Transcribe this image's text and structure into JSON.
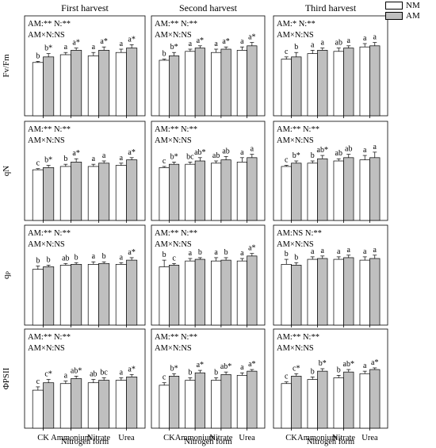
{
  "legend": {
    "items": [
      {
        "label": "NM",
        "color": "#ffffff"
      },
      {
        "label": "AM",
        "color": "#bfbfbf"
      }
    ]
  },
  "colors": {
    "NM": "#ffffff",
    "AM": "#bfbfbf",
    "axis": "#000000"
  },
  "column_titles": [
    "First harvest",
    "Second harvest",
    "Third harvest"
  ],
  "x_axis_label": "Nitrogen form",
  "chart_data": {
    "type": "bar",
    "grouped": true,
    "categories": [
      "CK",
      "Ammonium",
      "Nitrate",
      "Urea"
    ],
    "series_names": [
      "NM",
      "AM"
    ],
    "columns": [
      "First harvest",
      "Second harvest",
      "Third harvest"
    ],
    "xlabel": "Nitrogen form",
    "grid": false,
    "legend_position": "top-right",
    "rows": [
      {
        "ylabel": "Fv/Fm",
        "ylim": [
          0.0,
          0.9
        ],
        "panels": [
          {
            "stats": [
              "AM:** N:**",
              "AM×N:NS"
            ],
            "NM": [
              0.48,
              0.55,
              0.54,
              0.57
            ],
            "NM_err": [
              0.01,
              0.02,
              0.03,
              0.03
            ],
            "AM": [
              0.53,
              0.59,
              0.59,
              0.61
            ],
            "AM_err": [
              0.03,
              0.02,
              0.03,
              0.03
            ],
            "NM_labels": [
              "b",
              "a",
              "a",
              "a"
            ],
            "AM_labels": [
              "b*",
              "a*",
              "a*",
              "a*"
            ]
          },
          {
            "stats": [
              "AM:** N:**",
              "AM×N:NS"
            ],
            "NM": [
              0.5,
              0.58,
              0.57,
              0.59
            ],
            "NM_err": [
              0.01,
              0.02,
              0.03,
              0.03
            ],
            "AM": [
              0.54,
              0.61,
              0.6,
              0.63
            ],
            "AM_err": [
              0.03,
              0.02,
              0.02,
              0.03
            ],
            "NM_labels": [
              "b",
              "a",
              "a",
              "a"
            ],
            "AM_labels": [
              "b*",
              "a*",
              "a*",
              "a*"
            ]
          },
          {
            "stats": [
              "AM:* N:**",
              "AM×N:NS"
            ],
            "NM": [
              0.51,
              0.56,
              0.58,
              0.62
            ],
            "NM_err": [
              0.02,
              0.03,
              0.03,
              0.03
            ],
            "AM": [
              0.53,
              0.59,
              0.61,
              0.63
            ],
            "AM_err": [
              0.04,
              0.02,
              0.02,
              0.03
            ],
            "NM_labels": [
              "c",
              "a",
              "ab",
              "a"
            ],
            "AM_labels": [
              "b",
              "a",
              "a",
              "a"
            ]
          }
        ]
      },
      {
        "ylabel": "qN",
        "ylim": [
          0.0,
          0.9
        ],
        "panels": [
          {
            "stats": [
              "AM:** N:**",
              "AM×N:NS"
            ],
            "NM": [
              0.46,
              0.49,
              0.49,
              0.5
            ],
            "NM_err": [
              0.01,
              0.02,
              0.02,
              0.02
            ],
            "AM": [
              0.48,
              0.53,
              0.52,
              0.55
            ],
            "AM_err": [
              0.02,
              0.03,
              0.02,
              0.02
            ],
            "NM_labels": [
              "c",
              "b",
              "a",
              "a"
            ],
            "AM_labels": [
              "b*",
              "a*",
              "a",
              "a*"
            ]
          },
          {
            "stats": [
              "AM:** N:**",
              "AM×N:NS"
            ],
            "NM": [
              0.48,
              0.51,
              0.52,
              0.53
            ],
            "NM_err": [
              0.01,
              0.02,
              0.02,
              0.04
            ],
            "AM": [
              0.51,
              0.54,
              0.55,
              0.57
            ],
            "AM_err": [
              0.02,
              0.03,
              0.03,
              0.03
            ],
            "NM_labels": [
              "c",
              "bc",
              "ab",
              "a"
            ],
            "AM_labels": [
              "b*",
              "ab*",
              "ab",
              "a"
            ]
          },
          {
            "stats": [
              "AM:** N:**",
              "AM×N:NS"
            ],
            "NM": [
              0.49,
              0.52,
              0.54,
              0.55
            ],
            "NM_err": [
              0.01,
              0.02,
              0.02,
              0.04
            ],
            "AM": [
              0.52,
              0.56,
              0.57,
              0.57
            ],
            "AM_err": [
              0.02,
              0.03,
              0.03,
              0.05
            ],
            "NM_labels": [
              "c",
              "b",
              "ab",
              "a"
            ],
            "AM_labels": [
              "b*",
              "ab*",
              "ab",
              "a"
            ]
          }
        ]
      },
      {
        "ylabel": "qP",
        "ylim": [
          0.0,
          1.2
        ],
        "panels": [
          {
            "stats": [
              "AM:** N:**",
              "AM×N:NS"
            ],
            "NM": [
              0.67,
              0.72,
              0.73,
              0.73
            ],
            "NM_err": [
              0.04,
              0.02,
              0.03,
              0.02
            ],
            "AM": [
              0.7,
              0.73,
              0.74,
              0.78
            ],
            "AM_err": [
              0.02,
              0.02,
              0.02,
              0.03
            ],
            "NM_labels": [
              "b",
              "ab",
              "a",
              "a"
            ],
            "AM_labels": [
              "b",
              "b",
              "b",
              "a*"
            ]
          },
          {
            "stats": [
              "AM:** N:**",
              "AM×N:NS"
            ],
            "NM": [
              0.7,
              0.77,
              0.77,
              0.77
            ],
            "NM_err": [
              0.08,
              0.03,
              0.04,
              0.03
            ],
            "AM": [
              0.72,
              0.79,
              0.78,
              0.83
            ],
            "AM_err": [
              0.02,
              0.02,
              0.03,
              0.03
            ],
            "NM_labels": [
              "b",
              "a",
              "a",
              "a"
            ],
            "AM_labels": [
              "c",
              "b",
              "b",
              "a*"
            ]
          },
          {
            "stats": [
              "AM:NS N:**",
              "AM×N:NS"
            ],
            "NM": [
              0.73,
              0.79,
              0.79,
              0.78
            ],
            "NM_err": [
              0.06,
              0.03,
              0.03,
              0.04
            ],
            "AM": [
              0.72,
              0.8,
              0.81,
              0.8
            ],
            "AM_err": [
              0.03,
              0.03,
              0.03,
              0.04
            ],
            "NM_labels": [
              "b",
              "a",
              "a",
              "a"
            ],
            "AM_labels": [
              "b",
              "a",
              "a",
              "a"
            ]
          }
        ]
      },
      {
        "ylabel": "ΦPSII",
        "ylim": [
          0.0,
          1.2
        ],
        "panels": [
          {
            "stats": [
              "AM:** N:**",
              "AM×N:NS"
            ],
            "NM": [
              0.46,
              0.54,
              0.55,
              0.58
            ],
            "NM_err": [
              0.04,
              0.03,
              0.04,
              0.03
            ],
            "AM": [
              0.55,
              0.6,
              0.58,
              0.62
            ],
            "AM_err": [
              0.04,
              0.03,
              0.03,
              0.03
            ],
            "NM_labels": [
              "c",
              "a",
              "ab",
              "a"
            ],
            "AM_labels": [
              "c*",
              "ab*",
              "bc",
              "a*"
            ]
          },
          {
            "stats": [
              "AM:** N:**",
              "AM×N:NS"
            ],
            "NM": [
              0.52,
              0.58,
              0.58,
              0.64
            ],
            "NM_err": [
              0.03,
              0.03,
              0.03,
              0.03
            ],
            "AM": [
              0.63,
              0.67,
              0.65,
              0.69
            ],
            "AM_err": [
              0.03,
              0.03,
              0.03,
              0.02
            ],
            "NM_labels": [
              "c",
              "b",
              "b",
              "a"
            ],
            "AM_labels": [
              "b*",
              "a*",
              "ab*",
              "a*"
            ]
          },
          {
            "stats": [
              "AM:** N:**",
              "AM×N:NS"
            ],
            "NM": [
              0.54,
              0.59,
              0.61,
              0.66
            ],
            "NM_err": [
              0.02,
              0.03,
              0.03,
              0.03
            ],
            "AM": [
              0.63,
              0.69,
              0.68,
              0.71
            ],
            "AM_err": [
              0.03,
              0.03,
              0.03,
              0.02
            ],
            "NM_labels": [
              "c",
              "b",
              "b",
              "a"
            ],
            "AM_labels": [
              "c*",
              "b*",
              "ab*",
              "a*"
            ]
          }
        ]
      }
    ]
  }
}
